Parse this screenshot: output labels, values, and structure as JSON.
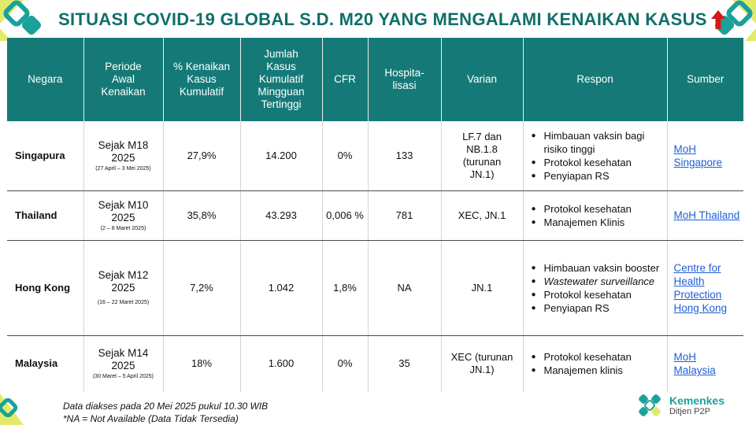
{
  "title": "SITUASI COVID-19 GLOBAL S.D. M20 YANG MENGALAMI KENAIKAN KASUS",
  "colors": {
    "header_bg": "#157a77",
    "title": "#0f6f6a",
    "arrow": "#d21a1a",
    "link": "#1f5fd6",
    "deco_green": "#1aa19a",
    "deco_yellow": "#e3ea6a"
  },
  "table": {
    "headers": {
      "negara": "Negara",
      "periode": "Periode Awal Kenaikan",
      "kenaikan": "% Kenaikan Kasus Kumulatif",
      "jumlah": "Jumlah Kasus Kumulatif Mingguan Tertinggi",
      "cfr": "CFR",
      "hosp": "Hospita-lisasi",
      "varian": "Varian",
      "respon": "Respon",
      "sumber": "Sumber"
    },
    "rows": [
      {
        "negara": "Singapura",
        "periode": "Sejak M18 2025",
        "periode_detail": "(27 April – 3 Mei 2025)",
        "kenaikan": "27,9%",
        "jumlah": "14.200",
        "cfr": "0%",
        "hosp": "133",
        "varian": "LF.7 dan NB.1.8 (turunan JN.1)",
        "respon": [
          "Himbauan vaksin bagi risiko tinggi",
          "Protokol kesehatan",
          "Penyiapan RS"
        ],
        "sumber": "MoH Singapore"
      },
      {
        "negara": "Thailand",
        "periode": "Sejak M10 2025",
        "periode_detail": "(2 – 8 Maret 2025)",
        "kenaikan": "35,8%",
        "jumlah": "43.293",
        "cfr": "0,006 %",
        "hosp": "781",
        "varian": "XEC, JN.1",
        "respon": [
          "Protokol kesehatan",
          "Manajemen Klinis"
        ],
        "sumber": "MoH Thailand"
      },
      {
        "negara": "Hong Kong",
        "periode": "Sejak M12 2025",
        "periode_detail": "(16 – 22 Maret 2025)",
        "kenaikan": "7,2%",
        "jumlah": "1.042",
        "cfr": "1,8%",
        "hosp": "NA",
        "varian": "JN.1",
        "respon": [
          "Himbauan vaksin booster",
          "Wastewater surveillance",
          "Protokol kesehatan",
          "Penyiapan RS"
        ],
        "sumber": "Centre for Health Protection Hong Kong"
      },
      {
        "negara": "Malaysia",
        "periode": "Sejak M14 2025",
        "periode_detail": "(30 Maret – 5 April 2025)",
        "kenaikan": "18%",
        "jumlah": "1.600",
        "cfr": "0%",
        "hosp": "35",
        "varian": "XEC (turunan JN.1)",
        "respon": [
          "Protokol kesehatan",
          "Manajemen klinis"
        ],
        "sumber": "MoH Malaysia"
      }
    ]
  },
  "footnotes": {
    "line1": "Data diakses pada 20 Mei 2025 pukul 10.30 WIB",
    "line2": "*NA = Not Available (Data Tidak Tersedia)"
  },
  "logo": {
    "name": "Kemenkes",
    "sub": "Ditjen P2P"
  }
}
